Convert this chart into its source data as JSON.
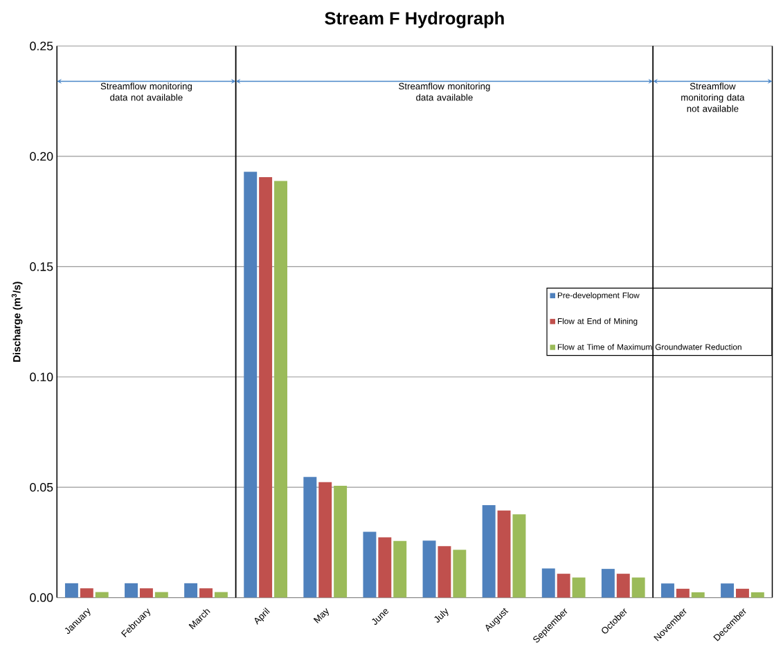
{
  "chart_data": {
    "type": "bar",
    "title": "Stream F Hydrograph",
    "ylabel": "Discharge (m$^{3}$/s)",
    "categories": [
      "January",
      "February",
      "March",
      "April",
      "May",
      "June",
      "July",
      "August",
      "September",
      "October",
      "November",
      "December"
    ],
    "series": [
      {
        "name": "Pre-development Flow",
        "color": "#4f81bd",
        "values": [
          0.0065,
          0.0065,
          0.0065,
          0.193,
          0.0547,
          0.0298,
          0.0258,
          0.0419,
          0.0132,
          0.013,
          0.0064,
          0.0064
        ]
      },
      {
        "name": "Flow at End of Mining",
        "color": "#c0504d",
        "values": [
          0.0042,
          0.0042,
          0.0042,
          0.1906,
          0.0523,
          0.0273,
          0.0233,
          0.0395,
          0.0108,
          0.0108,
          0.004,
          0.004
        ]
      },
      {
        "name": "Flow at Time of Maximum Groundwater Reduction",
        "color": "#9bbb59",
        "values": [
          0.0025,
          0.0025,
          0.0025,
          0.1888,
          0.0507,
          0.0257,
          0.0217,
          0.0377,
          0.0091,
          0.0091,
          0.0024,
          0.0024
        ]
      }
    ],
    "ylim": [
      0,
      0.25
    ],
    "yticks": [
      {
        "value": 0,
        "label": "0.00"
      },
      {
        "value": 0.05,
        "label": "0.05"
      },
      {
        "value": 0.1,
        "label": "0.10"
      },
      {
        "value": 0.15,
        "label": "0.15"
      },
      {
        "value": 0.2,
        "label": "0.20"
      },
      {
        "value": 0.25,
        "label": "0.25"
      }
    ],
    "grid": "y",
    "legend": "right",
    "annotations": [
      "Streamflow monitoring data not available",
      "Streamflow monitoring data available",
      "Streamflow monitoring data not available"
    ]
  }
}
